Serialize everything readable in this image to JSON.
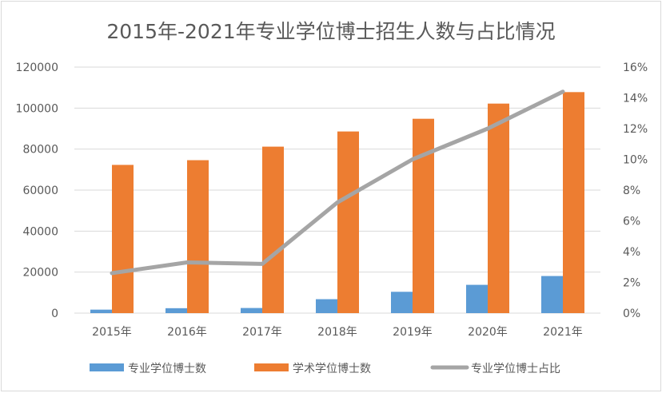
{
  "chart_data": {
    "type": "bar",
    "title": "2015年-2021年专业学位博士招生人数与占比情况",
    "categories": [
      "2015年",
      "2016年",
      "2017年",
      "2018年",
      "2019年",
      "2020年",
      "2021年"
    ],
    "series": [
      {
        "name": "专业学位博士数",
        "type": "bar",
        "axis": "left",
        "color": "#5b9bd5",
        "values": [
          1700,
          2400,
          2500,
          6800,
          10400,
          13800,
          18100
        ]
      },
      {
        "name": "学术学位博士数",
        "type": "bar",
        "axis": "left",
        "color": "#ed7d31",
        "values": [
          72300,
          74600,
          81200,
          88600,
          94800,
          102200,
          107800
        ]
      },
      {
        "name": "专业学位博士占比",
        "type": "line",
        "axis": "right",
        "color": "#a5a5a5",
        "values": [
          0.026,
          0.033,
          0.032,
          0.072,
          0.1,
          0.12,
          0.144
        ]
      }
    ],
    "left_axis": {
      "min": 0,
      "max": 120000,
      "ticks": [
        "0",
        "20000",
        "40000",
        "60000",
        "80000",
        "100000",
        "120000"
      ]
    },
    "right_axis": {
      "min": 0,
      "max": 0.16,
      "ticks": [
        "0%",
        "2%",
        "4%",
        "6%",
        "8%",
        "10%",
        "12%",
        "14%",
        "16%"
      ]
    },
    "grid": true,
    "legend_position": "bottom"
  }
}
